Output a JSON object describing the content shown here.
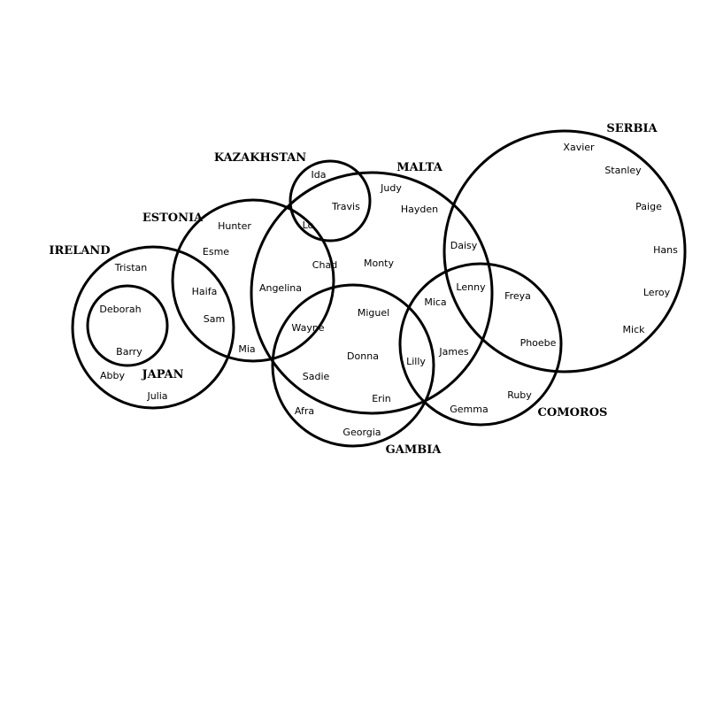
{
  "diagram": {
    "type": "euler-diagram",
    "sets": [
      {
        "id": "ireland",
        "label": "IRELAND"
      },
      {
        "id": "japan",
        "label": "JAPAN"
      },
      {
        "id": "estonia",
        "label": "ESTONIA"
      },
      {
        "id": "kazakhstan",
        "label": "KAZAKHSTAN"
      },
      {
        "id": "malta",
        "label": "MALTA"
      },
      {
        "id": "gambia",
        "label": "GAMBIA"
      },
      {
        "id": "comoros",
        "label": "COMOROS"
      },
      {
        "id": "serbia",
        "label": "SERBIA"
      }
    ],
    "members": [
      {
        "name": "Tristan",
        "sets": [
          "ireland"
        ]
      },
      {
        "name": "Deborah",
        "sets": [
          "ireland",
          "japan"
        ]
      },
      {
        "name": "Barry",
        "sets": [
          "ireland",
          "japan"
        ]
      },
      {
        "name": "Abby",
        "sets": [
          "ireland"
        ]
      },
      {
        "name": "Julia",
        "sets": [
          "ireland"
        ]
      },
      {
        "name": "Hunter",
        "sets": [
          "estonia"
        ]
      },
      {
        "name": "Esme",
        "sets": [
          "estonia"
        ]
      },
      {
        "name": "Haifa",
        "sets": [
          "ireland",
          "estonia"
        ]
      },
      {
        "name": "Sam",
        "sets": [
          "ireland",
          "estonia"
        ]
      },
      {
        "name": "Mia",
        "sets": [
          "estonia"
        ]
      },
      {
        "name": "Ida",
        "sets": [
          "kazakhstan"
        ]
      },
      {
        "name": "Travis",
        "sets": [
          "kazakhstan",
          "malta"
        ]
      },
      {
        "name": "Lo",
        "sets": [
          "kazakhstan",
          "malta",
          "estonia"
        ]
      },
      {
        "name": "Judy",
        "sets": [
          "malta"
        ]
      },
      {
        "name": "Hayden",
        "sets": [
          "malta"
        ]
      },
      {
        "name": "Chad",
        "sets": [
          "malta",
          "estonia"
        ]
      },
      {
        "name": "Angelina",
        "sets": [
          "malta",
          "estonia"
        ]
      },
      {
        "name": "Monty",
        "sets": [
          "malta"
        ]
      },
      {
        "name": "Wayne",
        "sets": [
          "malta",
          "estonia",
          "gambia"
        ]
      },
      {
        "name": "Miguel",
        "sets": [
          "malta",
          "gambia"
        ]
      },
      {
        "name": "Donna",
        "sets": [
          "malta",
          "gambia"
        ]
      },
      {
        "name": "Sadie",
        "sets": [
          "malta",
          "gambia"
        ]
      },
      {
        "name": "Erin",
        "sets": [
          "malta",
          "gambia"
        ]
      },
      {
        "name": "Afra",
        "sets": [
          "gambia"
        ]
      },
      {
        "name": "Georgia",
        "sets": [
          "gambia"
        ]
      },
      {
        "name": "Lilly",
        "sets": [
          "malta",
          "gambia",
          "comoros"
        ]
      },
      {
        "name": "Mica",
        "sets": [
          "malta",
          "comoros"
        ]
      },
      {
        "name": "James",
        "sets": [
          "malta",
          "comoros"
        ]
      },
      {
        "name": "Daisy",
        "sets": [
          "malta",
          "serbia"
        ]
      },
      {
        "name": "Lenny",
        "sets": [
          "malta",
          "serbia",
          "comoros"
        ]
      },
      {
        "name": "Freya",
        "sets": [
          "serbia",
          "comoros"
        ]
      },
      {
        "name": "Phoebe",
        "sets": [
          "serbia",
          "comoros"
        ]
      },
      {
        "name": "Ruby",
        "sets": [
          "comoros"
        ]
      },
      {
        "name": "Gemma",
        "sets": [
          "comoros"
        ]
      },
      {
        "name": "Xavier",
        "sets": [
          "serbia"
        ]
      },
      {
        "name": "Stanley",
        "sets": [
          "serbia"
        ]
      },
      {
        "name": "Paige",
        "sets": [
          "serbia"
        ]
      },
      {
        "name": "Hans",
        "sets": [
          "serbia"
        ]
      },
      {
        "name": "Leroy",
        "sets": [
          "serbia"
        ]
      },
      {
        "name": "Mick",
        "sets": [
          "serbia"
        ]
      }
    ]
  }
}
